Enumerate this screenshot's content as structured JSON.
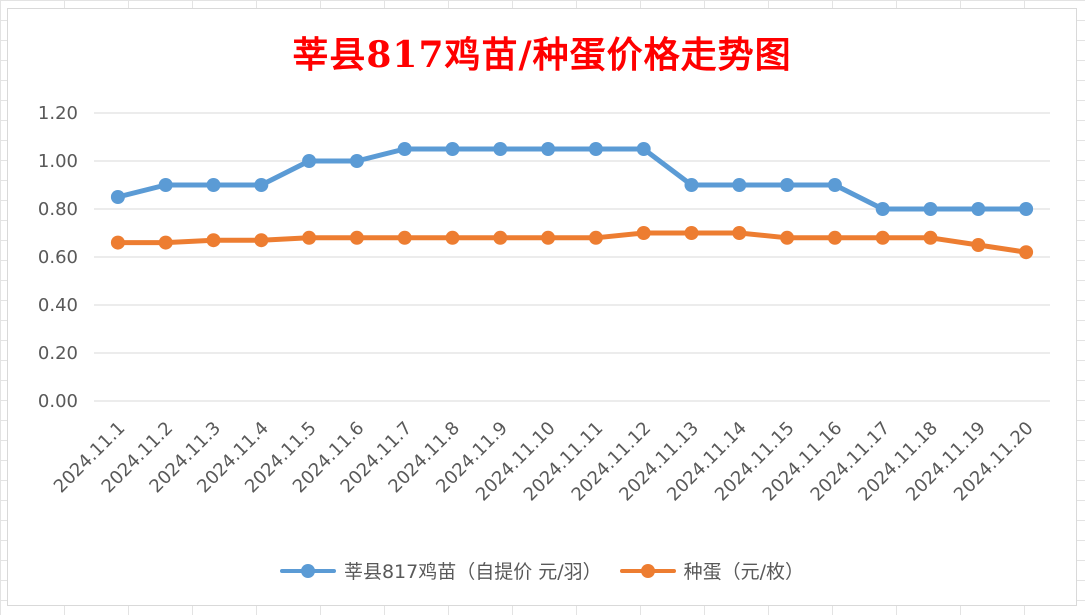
{
  "chart_data": {
    "type": "line",
    "title": "莘县817鸡苗/种蛋价格走势图",
    "xlabel": "",
    "ylabel": "",
    "categories": [
      "2024.11.1",
      "2024.11.2",
      "2024.11.3",
      "2024.11.4",
      "2024.11.5",
      "2024.11.6",
      "2024.11.7",
      "2024.11.8",
      "2024.11.9",
      "2024.11.10",
      "2024.11.11",
      "2024.11.12",
      "2024.11.13",
      "2024.11.14",
      "2024.11.15",
      "2024.11.16",
      "2024.11.17",
      "2024.11.18",
      "2024.11.19",
      "2024.11.20"
    ],
    "y_ticks": [
      "0.00",
      "0.20",
      "0.40",
      "0.60",
      "0.80",
      "1.00",
      "1.20"
    ],
    "ylim": [
      0,
      1.2
    ],
    "grid": "horizontal",
    "legend_position": "bottom",
    "series": [
      {
        "name": "莘县817鸡苗（自提价 元/羽）",
        "color": "#5b9bd5",
        "values": [
          0.85,
          0.9,
          0.9,
          0.9,
          1.0,
          1.0,
          1.05,
          1.05,
          1.05,
          1.05,
          1.05,
          1.05,
          0.9,
          0.9,
          0.9,
          0.9,
          0.8,
          0.8,
          0.8,
          0.8
        ]
      },
      {
        "name": "种蛋（元/枚）",
        "color": "#ed7d31",
        "values": [
          0.66,
          0.66,
          0.67,
          0.67,
          0.68,
          0.68,
          0.68,
          0.68,
          0.68,
          0.68,
          0.68,
          0.7,
          0.7,
          0.7,
          0.68,
          0.68,
          0.68,
          0.68,
          0.65,
          0.62
        ]
      }
    ]
  }
}
